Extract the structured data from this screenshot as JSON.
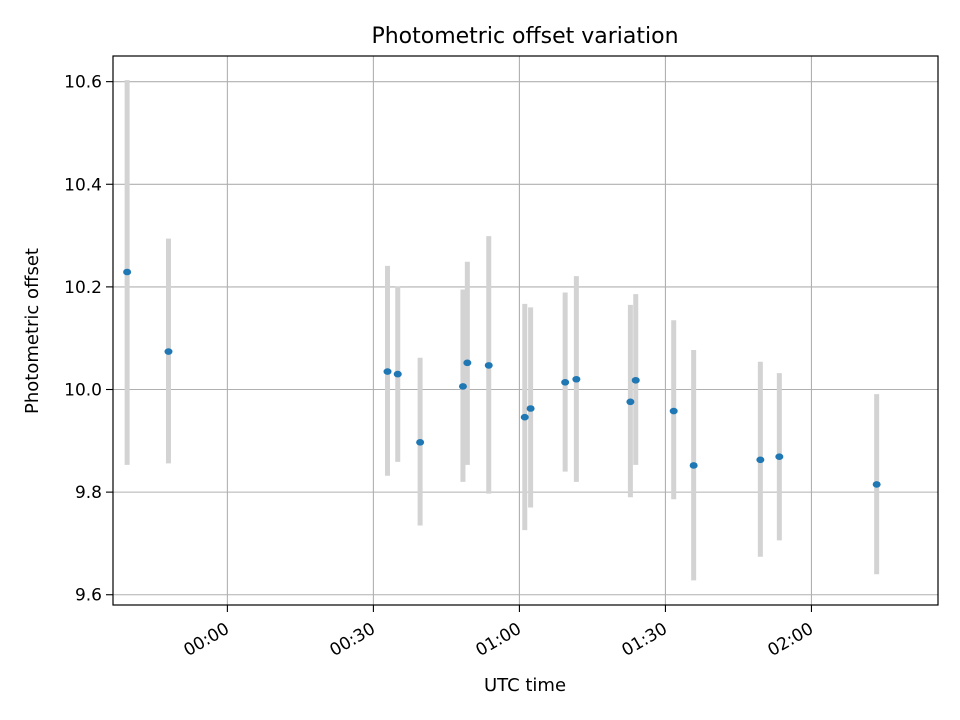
{
  "chart_data": {
    "type": "scatter",
    "title": "Photometric offset variation",
    "xlabel": "UTC time",
    "ylabel": "Photometric offset",
    "xlim_minutes": [
      -23.5,
      146.0
    ],
    "ylim": [
      9.58,
      10.65
    ],
    "grid": true,
    "legend": "none",
    "x_ticks": [
      {
        "minutes": 0,
        "label": "00:00"
      },
      {
        "minutes": 30,
        "label": "00:30"
      },
      {
        "minutes": 60,
        "label": "01:00"
      },
      {
        "minutes": 90,
        "label": "01:30"
      },
      {
        "minutes": 120,
        "label": "02:00"
      }
    ],
    "y_ticks": [
      {
        "value": 9.6,
        "label": "9.6"
      },
      {
        "value": 9.8,
        "label": "9.8"
      },
      {
        "value": 10.0,
        "label": "10.0"
      },
      {
        "value": 10.2,
        "label": "10.2"
      },
      {
        "value": 10.4,
        "label": "10.4"
      },
      {
        "value": 10.6,
        "label": "10.6"
      }
    ],
    "colors": {
      "point": "#1f77b4",
      "errorbar": "#d3d3d3",
      "grid": "#b0b0b0"
    },
    "series": [
      {
        "name": "offset",
        "points": [
          {
            "minutes": -20.6,
            "y": 10.229,
            "ymin": 9.853,
            "ymax": 10.603
          },
          {
            "minutes": -12.1,
            "y": 10.074,
            "ymin": 9.856,
            "ymax": 10.294
          },
          {
            "minutes": 32.9,
            "y": 10.035,
            "ymin": 9.832,
            "ymax": 10.241
          },
          {
            "minutes": 35.0,
            "y": 10.03,
            "ymin": 9.859,
            "ymax": 10.201
          },
          {
            "minutes": 39.6,
            "y": 9.897,
            "ymin": 9.735,
            "ymax": 10.062
          },
          {
            "minutes": 48.4,
            "y": 10.006,
            "ymin": 9.82,
            "ymax": 10.195
          },
          {
            "minutes": 49.3,
            "y": 10.052,
            "ymin": 9.853,
            "ymax": 10.249
          },
          {
            "minutes": 53.7,
            "y": 10.047,
            "ymin": 9.797,
            "ymax": 10.299
          },
          {
            "minutes": 61.1,
            "y": 9.946,
            "ymin": 9.726,
            "ymax": 10.167
          },
          {
            "minutes": 62.3,
            "y": 9.963,
            "ymin": 9.77,
            "ymax": 10.16
          },
          {
            "minutes": 69.4,
            "y": 10.014,
            "ymin": 9.84,
            "ymax": 10.189
          },
          {
            "minutes": 71.7,
            "y": 10.02,
            "ymin": 9.82,
            "ymax": 10.221
          },
          {
            "minutes": 82.8,
            "y": 9.976,
            "ymin": 9.79,
            "ymax": 10.165
          },
          {
            "minutes": 83.9,
            "y": 10.018,
            "ymin": 9.853,
            "ymax": 10.186
          },
          {
            "minutes": 91.7,
            "y": 9.958,
            "ymin": 9.786,
            "ymax": 10.135
          },
          {
            "minutes": 95.8,
            "y": 9.852,
            "ymin": 9.628,
            "ymax": 10.077
          },
          {
            "minutes": 109.5,
            "y": 9.863,
            "ymin": 9.674,
            "ymax": 10.054
          },
          {
            "minutes": 113.4,
            "y": 9.869,
            "ymin": 9.706,
            "ymax": 10.032
          },
          {
            "minutes": 133.4,
            "y": 9.815,
            "ymin": 9.64,
            "ymax": 9.991
          }
        ]
      }
    ]
  }
}
